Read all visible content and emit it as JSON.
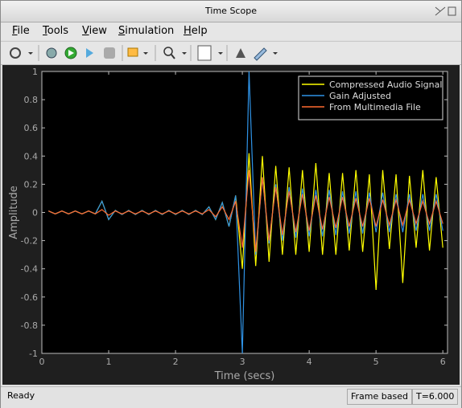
{
  "window": {
    "title": "Time Scope"
  },
  "menu": [
    "File",
    "Tools",
    "View",
    "Simulation",
    "Help"
  ],
  "status": {
    "left": "Ready",
    "mode": "Frame based",
    "time": "T=6.000"
  },
  "chart_data": {
    "type": "line",
    "xlabel": "Time (secs)",
    "ylabel": "Amplitude",
    "xlim": [
      0,
      6.07
    ],
    "ylim": [
      -1,
      1
    ],
    "xticks": [
      0,
      1,
      2,
      3,
      4,
      5,
      6
    ],
    "yticks": [
      -1,
      -0.8,
      -0.6,
      -0.4,
      -0.2,
      0,
      0.2,
      0.4,
      0.6,
      0.8,
      1
    ],
    "legend": "top-right",
    "grid": false,
    "x": [
      0.1,
      0.2,
      0.3,
      0.4,
      0.5,
      0.6,
      0.7,
      0.8,
      0.9,
      1.0,
      1.1,
      1.2,
      1.3,
      1.4,
      1.5,
      1.6,
      1.7,
      1.8,
      1.9,
      2.0,
      2.1,
      2.2,
      2.3,
      2.4,
      2.5,
      2.6,
      2.7,
      2.8,
      2.9,
      3.0,
      3.1,
      3.2,
      3.3,
      3.4,
      3.5,
      3.6,
      3.7,
      3.8,
      3.9,
      4.0,
      4.1,
      4.2,
      4.3,
      4.4,
      4.5,
      4.6,
      4.7,
      4.8,
      4.9,
      5.0,
      5.1,
      5.2,
      5.3,
      5.4,
      5.5,
      5.6,
      5.7,
      5.8,
      5.9,
      6.0
    ],
    "series": [
      {
        "name": "Compressed Audio Signal",
        "color": "#ffff00",
        "values": [
          0.01,
          -0.01,
          0.01,
          -0.01,
          0.01,
          -0.01,
          0.01,
          -0.01,
          0.08,
          -0.05,
          0.015,
          -0.015,
          0.015,
          -0.015,
          0.015,
          -0.015,
          0.015,
          -0.015,
          0.015,
          -0.015,
          0.015,
          -0.015,
          0.015,
          -0.015,
          0.04,
          -0.05,
          0.07,
          -0.1,
          0.12,
          -0.4,
          0.42,
          -0.38,
          0.4,
          -0.35,
          0.33,
          -0.3,
          0.32,
          -0.3,
          0.3,
          -0.28,
          0.35,
          -0.3,
          0.28,
          -0.3,
          0.28,
          -0.27,
          0.3,
          -0.28,
          0.27,
          -0.55,
          0.3,
          -0.26,
          0.27,
          -0.5,
          0.26,
          -0.25,
          0.3,
          -0.27,
          0.25,
          -0.25
        ]
      },
      {
        "name": "Gain Adjusted",
        "color": "#2f93e6",
        "values": [
          0.01,
          -0.01,
          0.01,
          -0.01,
          0.01,
          -0.01,
          0.01,
          -0.01,
          0.08,
          -0.05,
          0.015,
          -0.015,
          0.015,
          -0.015,
          0.015,
          -0.015,
          0.015,
          -0.015,
          0.015,
          -0.015,
          0.015,
          -0.015,
          0.015,
          -0.015,
          0.04,
          -0.05,
          0.07,
          -0.1,
          0.12,
          -1,
          1,
          -0.3,
          0.25,
          -0.22,
          0.2,
          -0.2,
          0.18,
          -0.18,
          0.17,
          -0.17,
          0.16,
          -0.17,
          0.16,
          -0.16,
          0.15,
          -0.15,
          0.15,
          -0.15,
          0.14,
          -0.14,
          0.14,
          -0.14,
          0.13,
          -0.14,
          0.13,
          -0.13,
          0.13,
          -0.13,
          0.13,
          -0.13
        ]
      },
      {
        "name": "From Multimedia File",
        "color": "#ff6a30",
        "values": [
          0.01,
          -0.01,
          0.01,
          -0.01,
          0.01,
          -0.01,
          0.01,
          -0.01,
          0.02,
          -0.02,
          0.01,
          -0.01,
          0.01,
          -0.01,
          0.01,
          -0.01,
          0.01,
          -0.01,
          0.01,
          -0.01,
          0.01,
          -0.01,
          0.01,
          -0.01,
          0.02,
          -0.03,
          0.04,
          -0.05,
          0.08,
          -0.25,
          0.3,
          -0.28,
          0.25,
          -0.2,
          0.18,
          -0.16,
          0.15,
          -0.14,
          0.13,
          -0.13,
          0.12,
          -0.12,
          0.11,
          -0.11,
          0.11,
          -0.1,
          0.1,
          -0.1,
          0.1,
          -0.1,
          0.09,
          -0.09,
          0.09,
          -0.09,
          0.09,
          -0.08,
          0.08,
          -0.08,
          0.08,
          -0.08
        ]
      }
    ]
  }
}
